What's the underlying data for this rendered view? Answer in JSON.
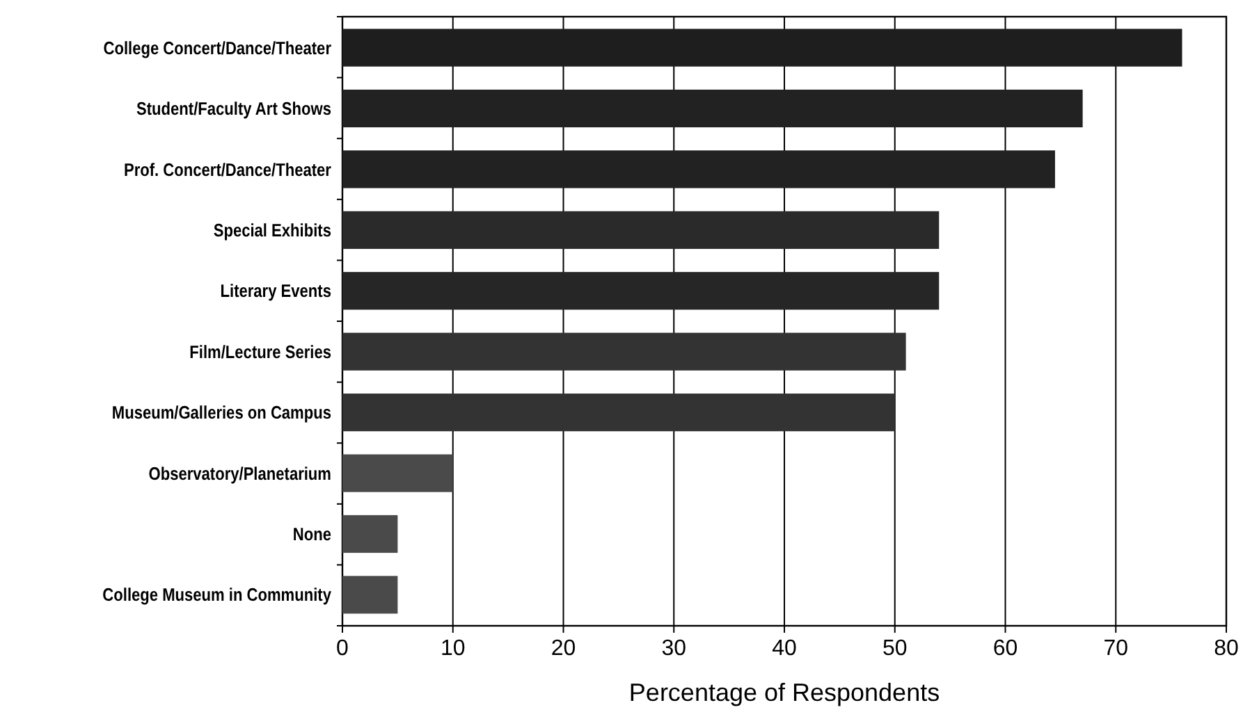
{
  "chart_data": {
    "type": "bar",
    "orientation": "horizontal",
    "xlabel": "Percentage of Respondents",
    "categories": [
      "College Concert/Dance/Theater",
      "Student/Faculty Art Shows",
      "Prof. Concert/Dance/Theater",
      "Special Exhibits",
      "Literary Events",
      "Film/Lecture Series",
      "Museum/Galleries on Campus",
      "Observatory/Planetarium",
      "None",
      "College Museum in Community"
    ],
    "values": [
      76,
      67,
      64.5,
      54,
      54,
      51,
      50,
      10,
      5,
      5
    ],
    "colors": [
      "#1e1e1e",
      "#222222",
      "#222222",
      "#2a2a2a",
      "#262626",
      "#333333",
      "#333333",
      "#4a4a4a",
      "#4a4a4a",
      "#4a4a4a"
    ],
    "xlim": [
      0,
      80
    ],
    "xticks": [
      0,
      10,
      20,
      30,
      40,
      50,
      60,
      70,
      80
    ],
    "grid": "x"
  }
}
